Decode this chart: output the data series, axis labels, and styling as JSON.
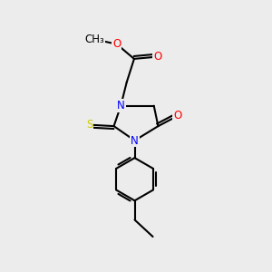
{
  "bg_color": "#ececec",
  "atom_colors": {
    "N": "#0000ff",
    "O": "#ff0000",
    "S": "#cccc00",
    "C": "#000000"
  },
  "bond_color": "#000000",
  "bond_width": 1.5,
  "font_size_atom": 8.5,
  "fig_size": [
    3.0,
    3.0
  ],
  "dpi": 100
}
